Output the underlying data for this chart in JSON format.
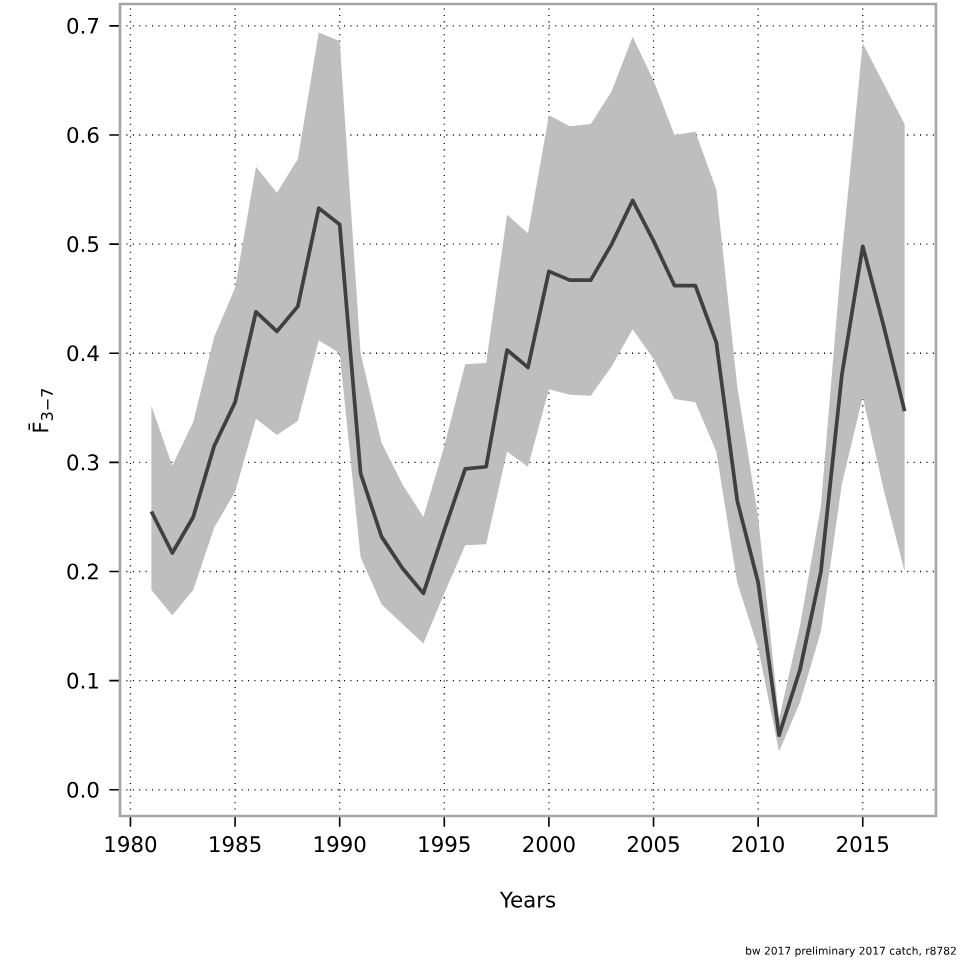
{
  "chart_data": {
    "type": "line",
    "xlabel": "Years",
    "ylabel": "F̄$_{3−7}$",
    "x": [
      1981,
      1982,
      1983,
      1984,
      1985,
      1986,
      1987,
      1988,
      1989,
      1990,
      1991,
      1992,
      1993,
      1994,
      1995,
      1996,
      1997,
      1998,
      1999,
      2000,
      2001,
      2002,
      2003,
      2004,
      2005,
      2006,
      2007,
      2008,
      2009,
      2010,
      2011,
      2012,
      2013,
      2014,
      2015,
      2016,
      2017
    ],
    "series": [
      {
        "color": "#404040",
        "values": [
          0.255,
          0.217,
          0.25,
          0.315,
          0.355,
          0.438,
          0.42,
          0.443,
          0.533,
          0.518,
          0.29,
          0.232,
          0.203,
          0.18,
          0.238,
          0.294,
          0.296,
          0.403,
          0.387,
          0.475,
          0.467,
          0.467,
          0.5,
          0.54,
          0.503,
          0.462,
          0.462,
          0.41,
          0.265,
          0.19,
          0.05,
          0.11,
          0.2,
          0.38,
          0.498,
          0.425,
          0.347
        ],
        "upper": [
          0.352,
          0.297,
          0.337,
          0.415,
          0.46,
          0.571,
          0.547,
          0.578,
          0.694,
          0.686,
          0.4,
          0.318,
          0.28,
          0.25,
          0.315,
          0.39,
          0.391,
          0.527,
          0.51,
          0.618,
          0.608,
          0.61,
          0.64,
          0.69,
          0.65,
          0.6,
          0.603,
          0.55,
          0.37,
          0.25,
          0.065,
          0.15,
          0.26,
          0.49,
          0.684,
          0.647,
          0.61
        ],
        "lower": [
          0.183,
          0.16,
          0.183,
          0.24,
          0.273,
          0.34,
          0.325,
          0.338,
          0.412,
          0.4,
          0.213,
          0.17,
          0.152,
          0.134,
          0.18,
          0.224,
          0.225,
          0.31,
          0.296,
          0.367,
          0.362,
          0.361,
          0.388,
          0.422,
          0.395,
          0.358,
          0.355,
          0.31,
          0.19,
          0.13,
          0.035,
          0.08,
          0.145,
          0.28,
          0.36,
          0.275,
          0.2
        ]
      }
    ],
    "xlim": [
      1979.5,
      2018.5
    ],
    "ylim": [
      -0.024,
      0.72
    ],
    "xticks": [
      1980,
      1985,
      1990,
      1995,
      2000,
      2005,
      2010,
      2015
    ],
    "yticks": [
      {
        "value": 0,
        "label": "0.0"
      },
      0.1,
      0.2,
      0.3,
      0.4,
      0.5,
      0.6,
      0.7
    ],
    "grid": true,
    "marker": "none",
    "line_style": "solid",
    "annotations": [
      "bw 2017 preliminary 2017 catch, r8782"
    ]
  }
}
